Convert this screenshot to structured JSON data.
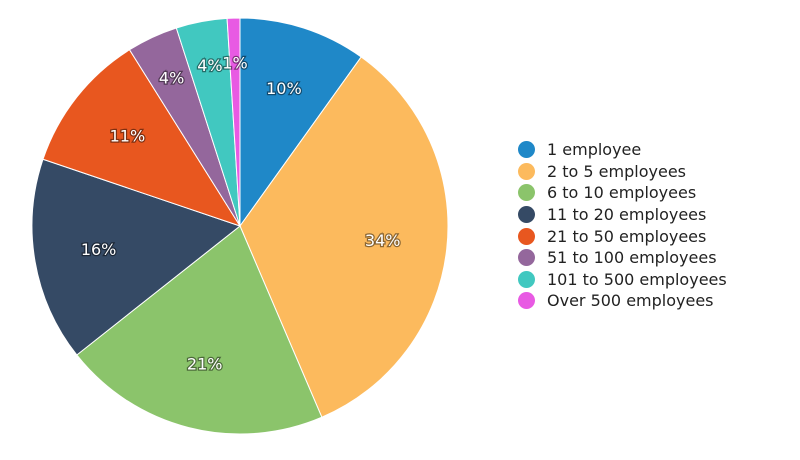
{
  "chart_data": {
    "type": "pie",
    "title": "",
    "legend_position": "right",
    "slices": [
      {
        "label": "1 employee",
        "value": 10,
        "display": "10%",
        "color": "#1f88c8"
      },
      {
        "label": "2 to 5 employees",
        "value": 34,
        "display": "34%",
        "color": "#fcba5d"
      },
      {
        "label": "6 to 10 employees",
        "value": 21,
        "display": "21%",
        "color": "#8bc46b"
      },
      {
        "label": "11 to 20 employees",
        "value": 16,
        "display": "16%",
        "color": "#354a65"
      },
      {
        "label": "21 to 50 employees",
        "value": 11,
        "display": "11%",
        "color": "#e8571f"
      },
      {
        "label": "51 to 100 employees",
        "value": 4,
        "display": "4%",
        "color": "#94679c"
      },
      {
        "label": "101 to 500 employees",
        "value": 4,
        "display": "4%",
        "color": "#41c8c0"
      },
      {
        "label": "Over 500 employees",
        "value": 1,
        "display": "1%",
        "color": "#e85ae3"
      }
    ]
  }
}
